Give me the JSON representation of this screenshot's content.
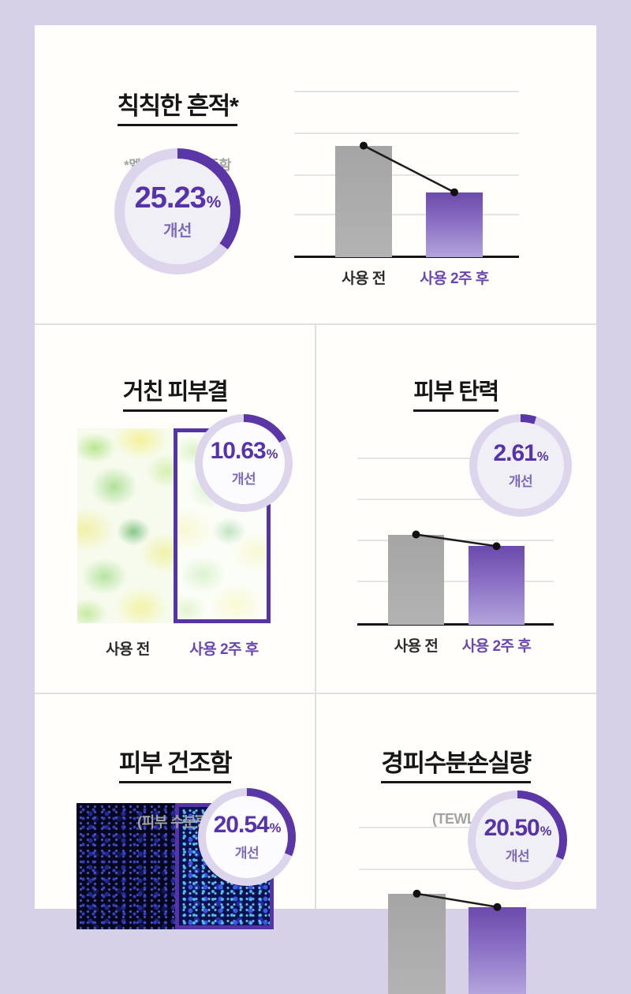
{
  "theme": {
    "background": "#d6d1e7",
    "card": "#fffefa",
    "accent_purple": "#5a36a6",
    "ring_light": "#ddd5ec",
    "value_purple": "#5633aa",
    "label_purple": "#6a47b0",
    "bar_gray": "#a9a9a9",
    "bar_purple_top": "#6b4aab",
    "bar_purple_bottom": "#b3a4dc",
    "title_black": "#161616",
    "subtitle_gray": "#a3a3a3"
  },
  "sections": {
    "dull_marks": {
      "title": "칙칙한 흔적*",
      "subtitle": "*멜라닌 지수를 뜻함",
      "stat": {
        "value": "25.23",
        "unit": "%",
        "label": "개선",
        "arc_deg": 127
      }
    },
    "rough_texture": {
      "title": "거친 피부결",
      "before_label": "사용 전",
      "after_label": "사용 2주 후",
      "image_alt": "skin-texture-magnification",
      "stat": {
        "value": "10.63",
        "unit": "%",
        "label": "개선",
        "arc_deg": 60
      }
    },
    "elasticity": {
      "title": "피부 탄력",
      "stat": {
        "value": "2.61",
        "unit": "%",
        "label": "개선",
        "arc_deg": 18
      }
    },
    "dryness": {
      "title": "피부 건조함",
      "subtitle": "(피부 수분량)",
      "image_alt": "skin-moisture-scan",
      "stat": {
        "value": "20.54",
        "unit": "%",
        "label": "개선",
        "arc_deg": 113
      }
    },
    "tewl": {
      "title": "경피수분손실량",
      "subtitle": "(TEWL)",
      "stat": {
        "value": "20.50",
        "unit": "%",
        "label": "개선",
        "arc_deg": 113
      }
    }
  },
  "chart_data": [
    {
      "type": "bar",
      "title": "칙칙한 흔적 (멜라닌 지수) 사용 전/후",
      "categories": [
        "사용 전",
        "사용 2주 후"
      ],
      "values": [
        67,
        39
      ],
      "values_note": "축 눈금 없음 — 플롯 높이 대비 % 추정치",
      "series_colors": [
        "gray",
        "purple-gradient"
      ],
      "annotation": "25.23% 개선",
      "trend_line": true,
      "baseline": true,
      "grid": true,
      "gridlines_pct": [
        0,
        25,
        50,
        74
      ]
    },
    {
      "type": "bar",
      "title": "피부 탄력 사용 전/후",
      "categories": [
        "사용 전",
        "사용 2주 후"
      ],
      "values": [
        54,
        47
      ],
      "values_note": "축 눈금 없음 — 플롯 높이 대비 % 추정치",
      "series_colors": [
        "gray",
        "purple-gradient"
      ],
      "annotation": "2.61% 개선",
      "trend_line": true,
      "baseline": true,
      "grid": true,
      "gridlines_pct": [
        0,
        24.5,
        49,
        73.6
      ]
    },
    {
      "type": "bar",
      "title": "경피수분손실량 (TEWL) 사용 전/후 — 화면 하단에서 잘림",
      "categories": [],
      "values": [
        60,
        52
      ],
      "values_note": "차트 일부만 보임 — 보이는 회색 막대 상단 기준 추정치",
      "series_colors": [
        "gray",
        "purple-gradient"
      ],
      "annotation": "20.50% 개선",
      "trend_line": true,
      "baseline": false,
      "grid": true,
      "gridlines_pct": [
        0,
        25
      ],
      "partial": true
    }
  ]
}
